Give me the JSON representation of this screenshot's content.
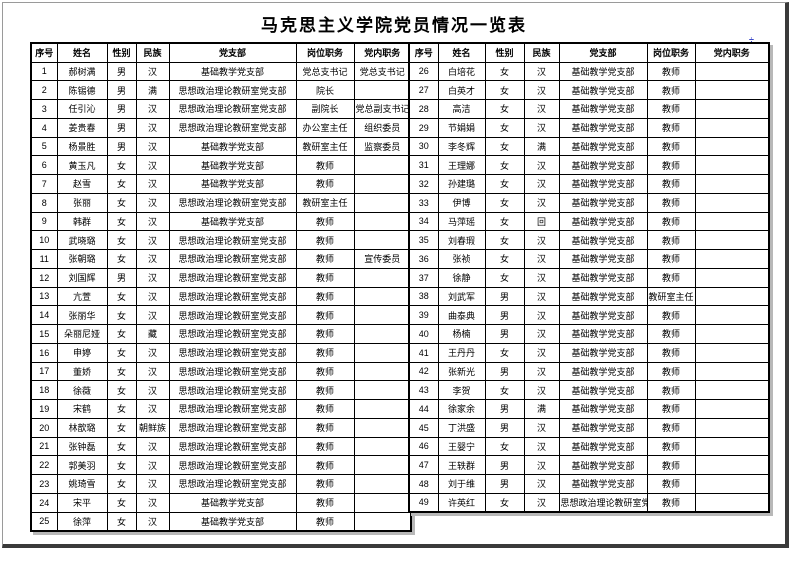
{
  "page": {
    "title": "马克思主义学院党员情况一览表",
    "artifact_mark": "÷"
  },
  "table": {
    "headers": [
      "序号",
      "姓名",
      "性别",
      "民族",
      "党支部",
      "岗位职务",
      "党内职务"
    ],
    "left_col_widths": [
      26,
      50,
      29,
      33,
      127,
      58,
      57
    ],
    "right_col_widths": [
      29,
      47,
      39,
      35,
      88,
      48,
      74
    ],
    "left_rows": [
      [
        "1",
        "郝树满",
        "男",
        "汉",
        "基础教学党支部",
        "党总支书记",
        "党总支书记"
      ],
      [
        "2",
        "陈锡德",
        "男",
        "满",
        "思想政治理论教研室党支部",
        "院长",
        ""
      ],
      [
        "3",
        "任引沁",
        "男",
        "汉",
        "思想政治理论教研室党支部",
        "副院长",
        "党总副支书记"
      ],
      [
        "4",
        "姜贵春",
        "男",
        "汉",
        "思想政治理论教研室党支部",
        "办公室主任",
        "组织委员"
      ],
      [
        "5",
        "杨景胜",
        "男",
        "汉",
        "基础教学党支部",
        "教研室主任",
        "监察委员"
      ],
      [
        "6",
        "黄玉凡",
        "女",
        "汉",
        "基础教学党支部",
        "教师",
        ""
      ],
      [
        "7",
        "赵雪",
        "女",
        "汉",
        "基础教学党支部",
        "教师",
        ""
      ],
      [
        "8",
        "张丽",
        "女",
        "汉",
        "思想政治理论教研室党支部",
        "教研室主任",
        ""
      ],
      [
        "9",
        "韩群",
        "女",
        "汉",
        "基础教学党支部",
        "教师",
        ""
      ],
      [
        "10",
        "武晓璐",
        "女",
        "汉",
        "思想政治理论教研室党支部",
        "教师",
        ""
      ],
      [
        "11",
        "张朝璐",
        "女",
        "汉",
        "思想政治理论教研室党支部",
        "教师",
        "宣传委员"
      ],
      [
        "12",
        "刘国辉",
        "男",
        "汉",
        "思想政治理论教研室党支部",
        "教师",
        ""
      ],
      [
        "13",
        "亢萱",
        "女",
        "汉",
        "思想政治理论教研室党支部",
        "教师",
        ""
      ],
      [
        "14",
        "张丽华",
        "女",
        "汉",
        "思想政治理论教研室党支部",
        "教师",
        ""
      ],
      [
        "15",
        "朵丽尼娅",
        "女",
        "藏",
        "思想政治理论教研室党支部",
        "教师",
        ""
      ],
      [
        "16",
        "申婷",
        "女",
        "汉",
        "思想政治理论教研室党支部",
        "教师",
        ""
      ],
      [
        "17",
        "董娇",
        "女",
        "汉",
        "思想政治理论教研室党支部",
        "教师",
        ""
      ],
      [
        "18",
        "徐薇",
        "女",
        "汉",
        "思想政治理论教研室党支部",
        "教师",
        ""
      ],
      [
        "19",
        "宋鹤",
        "女",
        "汉",
        "思想政治理论教研室党支部",
        "教师",
        ""
      ],
      [
        "20",
        "林歆璐",
        "女",
        "朝鲜族",
        "思想政治理论教研室党支部",
        "教师",
        ""
      ],
      [
        "21",
        "张钟磊",
        "女",
        "汉",
        "思想政治理论教研室党支部",
        "教师",
        ""
      ],
      [
        "22",
        "郭美羽",
        "女",
        "汉",
        "思想政治理论教研室党支部",
        "教师",
        ""
      ],
      [
        "23",
        "姚琦雪",
        "女",
        "汉",
        "思想政治理论教研室党支部",
        "教师",
        ""
      ],
      [
        "24",
        "宋平",
        "女",
        "汉",
        "基础教学党支部",
        "教师",
        ""
      ],
      [
        "25",
        "徐萍",
        "女",
        "汉",
        "基础教学党支部",
        "教师",
        ""
      ]
    ],
    "right_rows": [
      [
        "26",
        "白培花",
        "女",
        "汉",
        "基础教学党支部",
        "教师",
        ""
      ],
      [
        "27",
        "白英才",
        "女",
        "汉",
        "基础教学党支部",
        "教师",
        ""
      ],
      [
        "28",
        "高洁",
        "女",
        "汉",
        "基础教学党支部",
        "教师",
        ""
      ],
      [
        "29",
        "节娟娟",
        "女",
        "汉",
        "基础教学党支部",
        "教师",
        ""
      ],
      [
        "30",
        "李冬辉",
        "女",
        "满",
        "基础教学党支部",
        "教师",
        ""
      ],
      [
        "31",
        "王理娜",
        "女",
        "汉",
        "基础教学党支部",
        "教师",
        ""
      ],
      [
        "32",
        "孙建璐",
        "女",
        "汉",
        "基础教学党支部",
        "教师",
        ""
      ],
      [
        "33",
        "伊博",
        "女",
        "汉",
        "基础教学党支部",
        "教师",
        ""
      ],
      [
        "34",
        "马萍瑶",
        "女",
        "回",
        "基础教学党支部",
        "教师",
        ""
      ],
      [
        "35",
        "刘春瑕",
        "女",
        "汉",
        "基础教学党支部",
        "教师",
        ""
      ],
      [
        "36",
        "张祯",
        "女",
        "汉",
        "基础教学党支部",
        "教师",
        ""
      ],
      [
        "37",
        "徐静",
        "女",
        "汉",
        "基础教学党支部",
        "教师",
        ""
      ],
      [
        "38",
        "刘武军",
        "男",
        "汉",
        "基础教学党支部",
        "教研室主任",
        ""
      ],
      [
        "39",
        "曲泰典",
        "男",
        "汉",
        "基础教学党支部",
        "教师",
        ""
      ],
      [
        "40",
        "杨楠",
        "男",
        "汉",
        "基础教学党支部",
        "教师",
        ""
      ],
      [
        "41",
        "王丹丹",
        "女",
        "汉",
        "基础教学党支部",
        "教师",
        ""
      ],
      [
        "42",
        "张新光",
        "男",
        "汉",
        "基础教学党支部",
        "教师",
        ""
      ],
      [
        "43",
        "李贺",
        "女",
        "汉",
        "基础教学党支部",
        "教师",
        ""
      ],
      [
        "44",
        "徐家余",
        "男",
        "满",
        "基础教学党支部",
        "教师",
        ""
      ],
      [
        "45",
        "丁洪盛",
        "男",
        "汉",
        "基础教学党支部",
        "教师",
        ""
      ],
      [
        "46",
        "王婴宁",
        "女",
        "汉",
        "基础教学党支部",
        "教师",
        ""
      ],
      [
        "47",
        "王轶群",
        "男",
        "汉",
        "基础教学党支部",
        "教师",
        ""
      ],
      [
        "48",
        "刘于维",
        "男",
        "汉",
        "基础教学党支部",
        "教师",
        ""
      ],
      [
        "49",
        "许英红",
        "女",
        "汉",
        "思想政治理论教研室党支部",
        "教师",
        ""
      ]
    ]
  }
}
